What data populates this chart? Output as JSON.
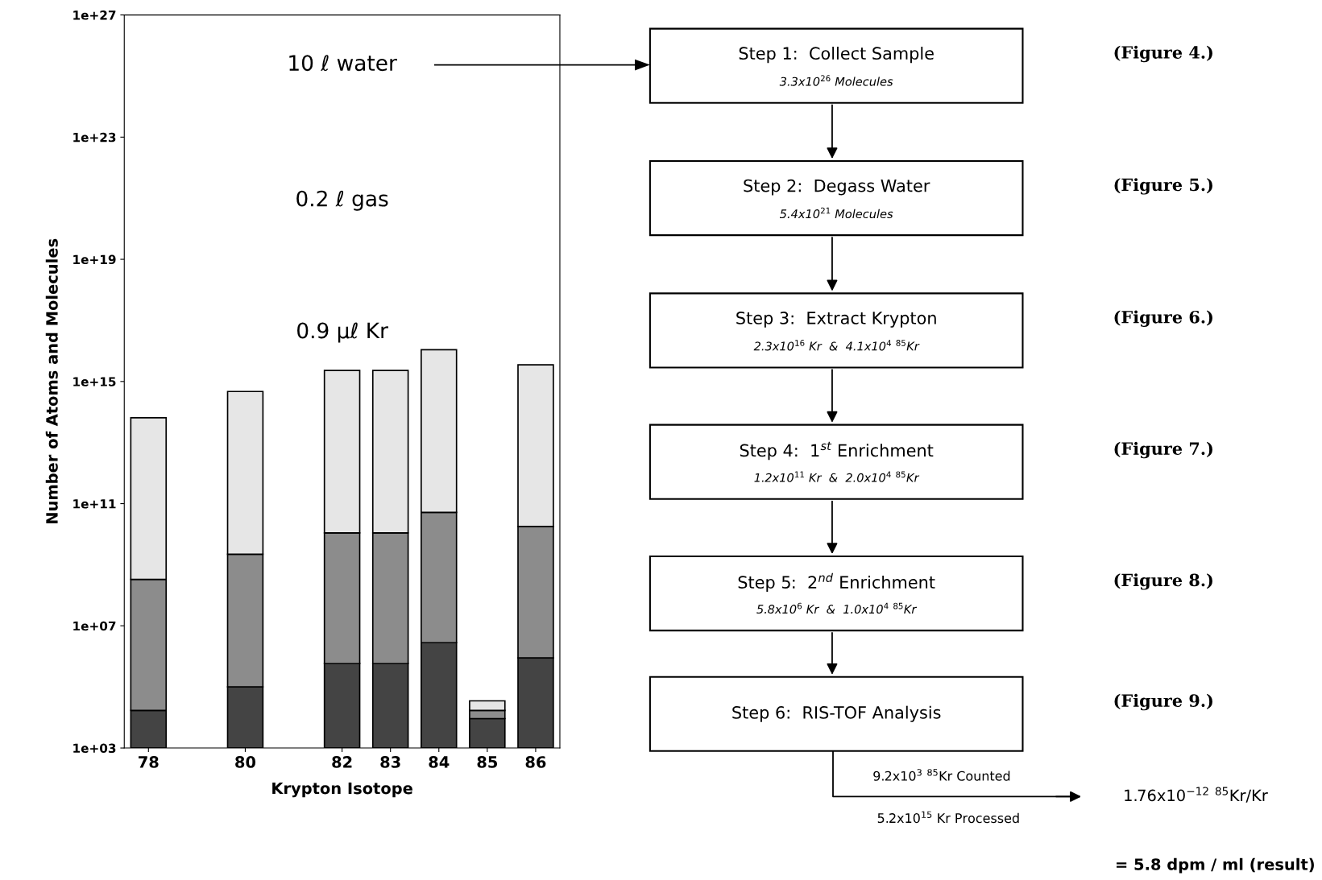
{
  "chart_data": [
    {
      "type": "bar",
      "x": [
        78,
        80,
        82,
        83,
        84,
        85,
        86
      ],
      "log": "y",
      "xlim": [
        77.5,
        86.5
      ],
      "xticks": [
        78,
        80,
        82,
        83,
        84,
        85,
        86
      ],
      "ylim": [
        1000.0,
        1e+27
      ],
      "yticks": [
        {
          "value": 1000.0,
          "label": "1e+03"
        },
        {
          "value": 10000000.0,
          "label": "1e+07"
        },
        {
          "value": 100000000000.0,
          "label": "1e+11"
        },
        {
          "value": 1000000000000000.0,
          "label": "1e+15"
        },
        {
          "value": 1e+19,
          "label": "1e+19"
        },
        {
          "value": 1e+23,
          "label": "1e+23"
        },
        {
          "value": 1e+27,
          "label": "1e+27"
        }
      ],
      "xlabel": "Krypton Isotope",
      "ylabel": "Number of Atoms and Molecules",
      "series": [
        {
          "color": "#444444",
          "base": [
            1000.0,
            1000.0,
            1000.0,
            1000.0,
            1000.0,
            1000.0,
            1000.0
          ],
          "values": [
            16000.0,
            99000.0,
            580000.0,
            580000.0,
            2800000.0,
            8200.0,
            890000.0
          ]
        },
        {
          "color": "#8c8c8c",
          "base": [
            17000.0,
            100000.0,
            580000.0,
            580000.0,
            2800000.0,
            9200.0,
            890000.0
          ],
          "values": [
            330000000.0,
            2200000000.0,
            11000000000.0,
            11000000000.0,
            52000000000.0,
            7800.0,
            18000000000.0
          ]
        },
        {
          "color": "#e6e6e6",
          "base": [
            330000000.0,
            2200000000.0,
            11000000000.0,
            11000000000.0,
            52000000000.0,
            17000.0,
            18000000000.0
          ],
          "values": [
            65000000000000.0,
            470000000000000.0,
            2300000000000000.0,
            2300000000000000.0,
            1.1e+16,
            18000.0,
            3500000000000000.0
          ]
        }
      ],
      "annotations": [
        "10 ℓ water",
        "0.2 ℓ gas",
        "0.9 μℓ Kr"
      ]
    },
    {
      "type": "other",
      "annotations": [
        "Step 1:  Collect Sample",
        "3.3x10$^{26}$ Molecules",
        "Step 2:  Degass Water",
        "5.4x10$^{21}$ Molecules",
        "Step 3:  Extract Krypton",
        "2.3x10$^{16}$ Kr  &  4.1x10$^{4}$ $^{85}$Kr",
        "Step 4:  1$^{st}$ Enrichment",
        "1.2x10$^{11}$ Kr  &  2.0x10$^{4}$ $^{85}$Kr",
        "Step 5:  2$^{nd}$ Enrichment",
        "5.8x10$^{6}$ Kr  &  1.0x10$^{4}$ $^{85}$Kr",
        "Step 6:  RIS-TOF Analysis",
        "(Figure 4.)",
        "(Figure 5.)",
        "(Figure 6.)",
        "(Figure 7.)",
        "(Figure 8.)",
        "(Figure 9.)",
        "9.2x10$^{3}$ $^{85}$Kr Counted",
        "5.2x10$^{15}$ Kr Processed",
        "1.76x10$^{−12}$ $^{85}$Kr/Kr",
        "= 5.8 dpm / ml (result)"
      ]
    }
  ]
}
